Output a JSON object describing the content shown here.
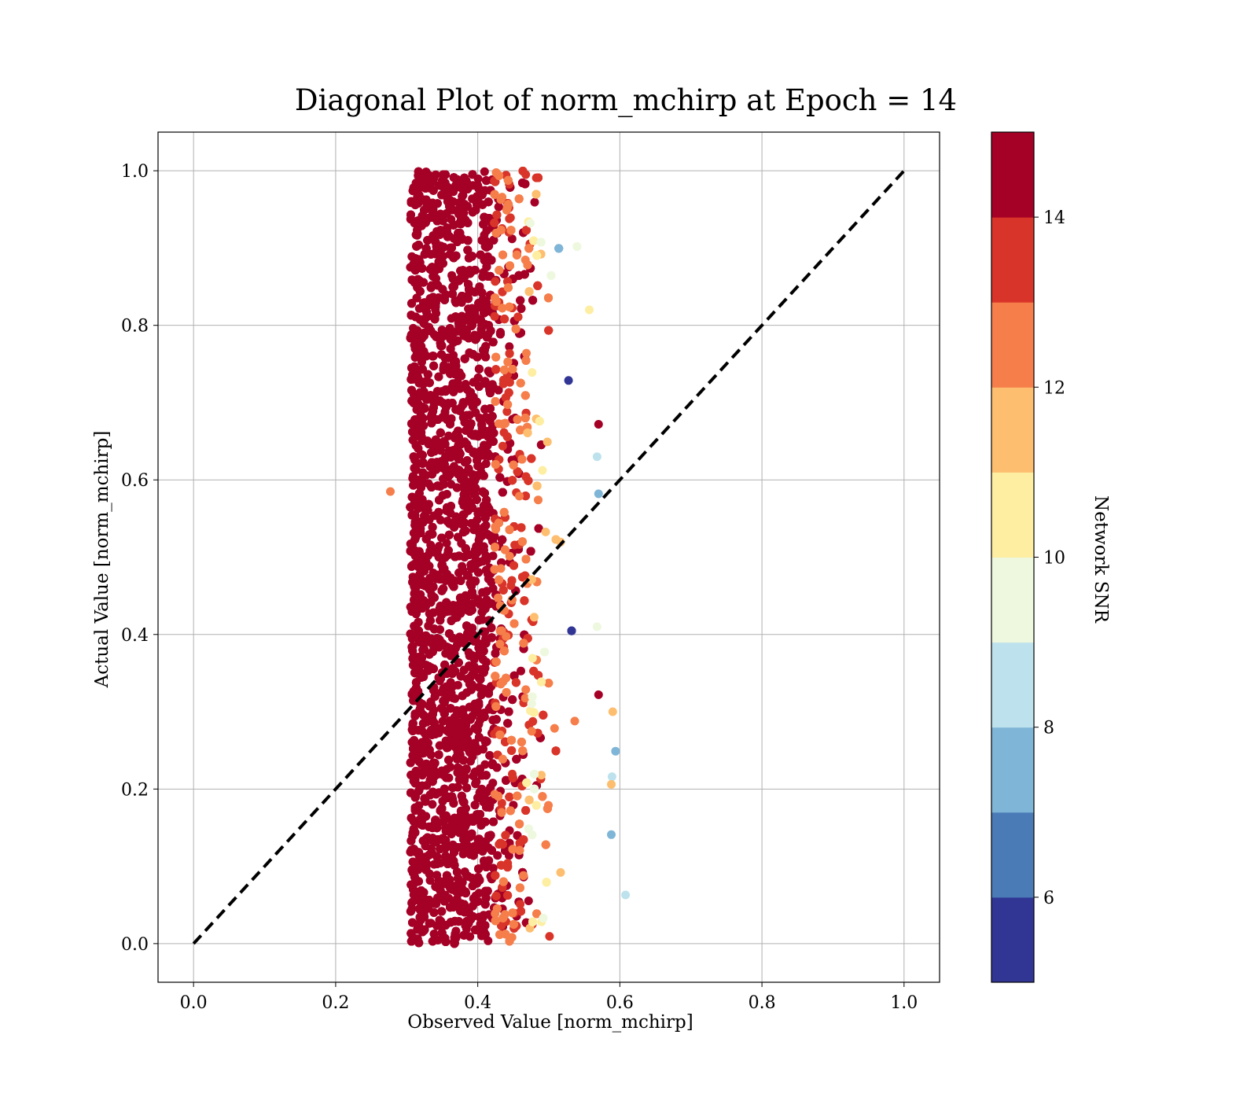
{
  "chart_data": {
    "type": "scatter",
    "title": "Diagonal Plot of norm_mchirp at Epoch = 14",
    "xlabel": "Observed Value [norm_mchirp]",
    "ylabel": "Actual Value [norm_mchirp]",
    "xlim": [
      -0.05,
      1.05
    ],
    "ylim": [
      -0.05,
      1.05
    ],
    "xticks": [
      "0.0",
      "0.2",
      "0.4",
      "0.6",
      "0.8",
      "1.0"
    ],
    "yticks": [
      "0.0",
      "0.2",
      "0.4",
      "0.6",
      "0.8",
      "1.0"
    ],
    "grid": true,
    "reference_line": {
      "style": "dashed",
      "color": "#000000",
      "x": [
        0.0,
        1.0
      ],
      "y": [
        0.0,
        1.0
      ]
    },
    "colorbar": {
      "label": "Network SNR",
      "range": [
        5,
        15
      ],
      "ticks": [
        "6",
        "8",
        "10",
        "12",
        "14"
      ],
      "tick_values": [
        6,
        8,
        10,
        12,
        14
      ],
      "bins": [
        {
          "min": 5,
          "max": 6,
          "color": "#313695"
        },
        {
          "min": 6,
          "max": 7,
          "color": "#4a7bb7"
        },
        {
          "min": 7,
          "max": 8,
          "color": "#7fb5d6"
        },
        {
          "min": 8,
          "max": 9,
          "color": "#bde2ed"
        },
        {
          "min": 9,
          "max": 10,
          "color": "#eef8df"
        },
        {
          "min": 10,
          "max": 11,
          "color": "#feeea2"
        },
        {
          "min": 11,
          "max": 12,
          "color": "#fdbe70"
        },
        {
          "min": 12,
          "max": 13,
          "color": "#f57e4b"
        },
        {
          "min": 13,
          "max": 14,
          "color": "#d93429"
        },
        {
          "min": 14,
          "max": 15,
          "color": "#a50026"
        }
      ]
    },
    "point_cloud": {
      "y_range": [
        0.0,
        1.0
      ],
      "x_range": [
        0.3,
        0.55
      ],
      "dense_high_snr_x_range": [
        0.31,
        0.44
      ],
      "low_snr_edge_x": 0.54
    },
    "outliers": [
      {
        "x": 0.277,
        "y": 0.585,
        "snr": 12.5
      },
      {
        "x": 0.57,
        "y": 0.672,
        "snr": 14.5
      },
      {
        "x": 0.568,
        "y": 0.63,
        "snr": 8.5
      },
      {
        "x": 0.57,
        "y": 0.582,
        "snr": 7.5
      },
      {
        "x": 0.568,
        "y": 0.41,
        "snr": 9.5
      },
      {
        "x": 0.57,
        "y": 0.322,
        "snr": 14.5
      },
      {
        "x": 0.59,
        "y": 0.3,
        "snr": 11.5
      },
      {
        "x": 0.594,
        "y": 0.249,
        "snr": 7.5
      },
      {
        "x": 0.589,
        "y": 0.216,
        "snr": 8.5
      },
      {
        "x": 0.588,
        "y": 0.206,
        "snr": 11.5
      },
      {
        "x": 0.588,
        "y": 0.141,
        "snr": 7.5
      },
      {
        "x": 0.608,
        "y": 0.063,
        "snr": 8.5
      },
      {
        "x": 0.557,
        "y": 0.82,
        "snr": 10.5
      }
    ]
  }
}
